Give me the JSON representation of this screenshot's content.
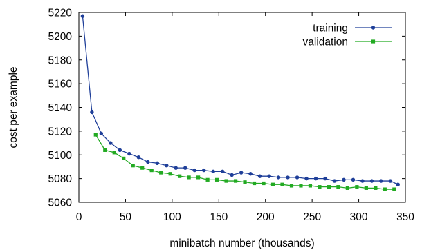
{
  "chart_data": {
    "type": "line",
    "title": "",
    "xlabel": "minibatch number (thousands)",
    "ylabel": "cost per example",
    "xlim": [
      0,
      350
    ],
    "ylim": [
      5060,
      5220
    ],
    "xticks": [
      0,
      50,
      100,
      150,
      200,
      250,
      300,
      350
    ],
    "yticks": [
      5060,
      5080,
      5100,
      5120,
      5140,
      5160,
      5180,
      5200,
      5220
    ],
    "grid": false,
    "legend_position": "top-right",
    "series": [
      {
        "name": "training",
        "color": "#1f3f99",
        "marker": "circle",
        "x": [
          4,
          14,
          24,
          34,
          44,
          54,
          64,
          74,
          84,
          94,
          104,
          114,
          124,
          134,
          144,
          154,
          164,
          174,
          184,
          194,
          204,
          214,
          224,
          234,
          244,
          254,
          264,
          274,
          284,
          294,
          304,
          314,
          324,
          334,
          342
        ],
        "y": [
          5217,
          5136,
          5118,
          5110,
          5104,
          5101,
          5098,
          5094,
          5093,
          5091,
          5089,
          5089,
          5087,
          5087,
          5086,
          5086,
          5083,
          5085,
          5084,
          5082,
          5082,
          5081,
          5081,
          5081,
          5080,
          5080,
          5080,
          5078,
          5079,
          5079,
          5078,
          5078,
          5078,
          5078,
          5075
        ]
      },
      {
        "name": "validation",
        "color": "#22aa22",
        "marker": "square",
        "x": [
          18,
          28,
          38,
          48,
          58,
          68,
          78,
          88,
          98,
          108,
          118,
          128,
          138,
          148,
          158,
          168,
          178,
          188,
          198,
          208,
          218,
          228,
          238,
          248,
          258,
          268,
          278,
          288,
          298,
          308,
          318,
          328,
          338
        ],
        "y": [
          5117,
          5104,
          5102,
          5097,
          5091,
          5089,
          5087,
          5085,
          5084,
          5082,
          5081,
          5081,
          5079,
          5079,
          5078,
          5078,
          5077,
          5076,
          5076,
          5075,
          5075,
          5074,
          5074,
          5074,
          5073,
          5073,
          5073,
          5072,
          5073,
          5072,
          5072,
          5071,
          5071
        ]
      }
    ]
  }
}
